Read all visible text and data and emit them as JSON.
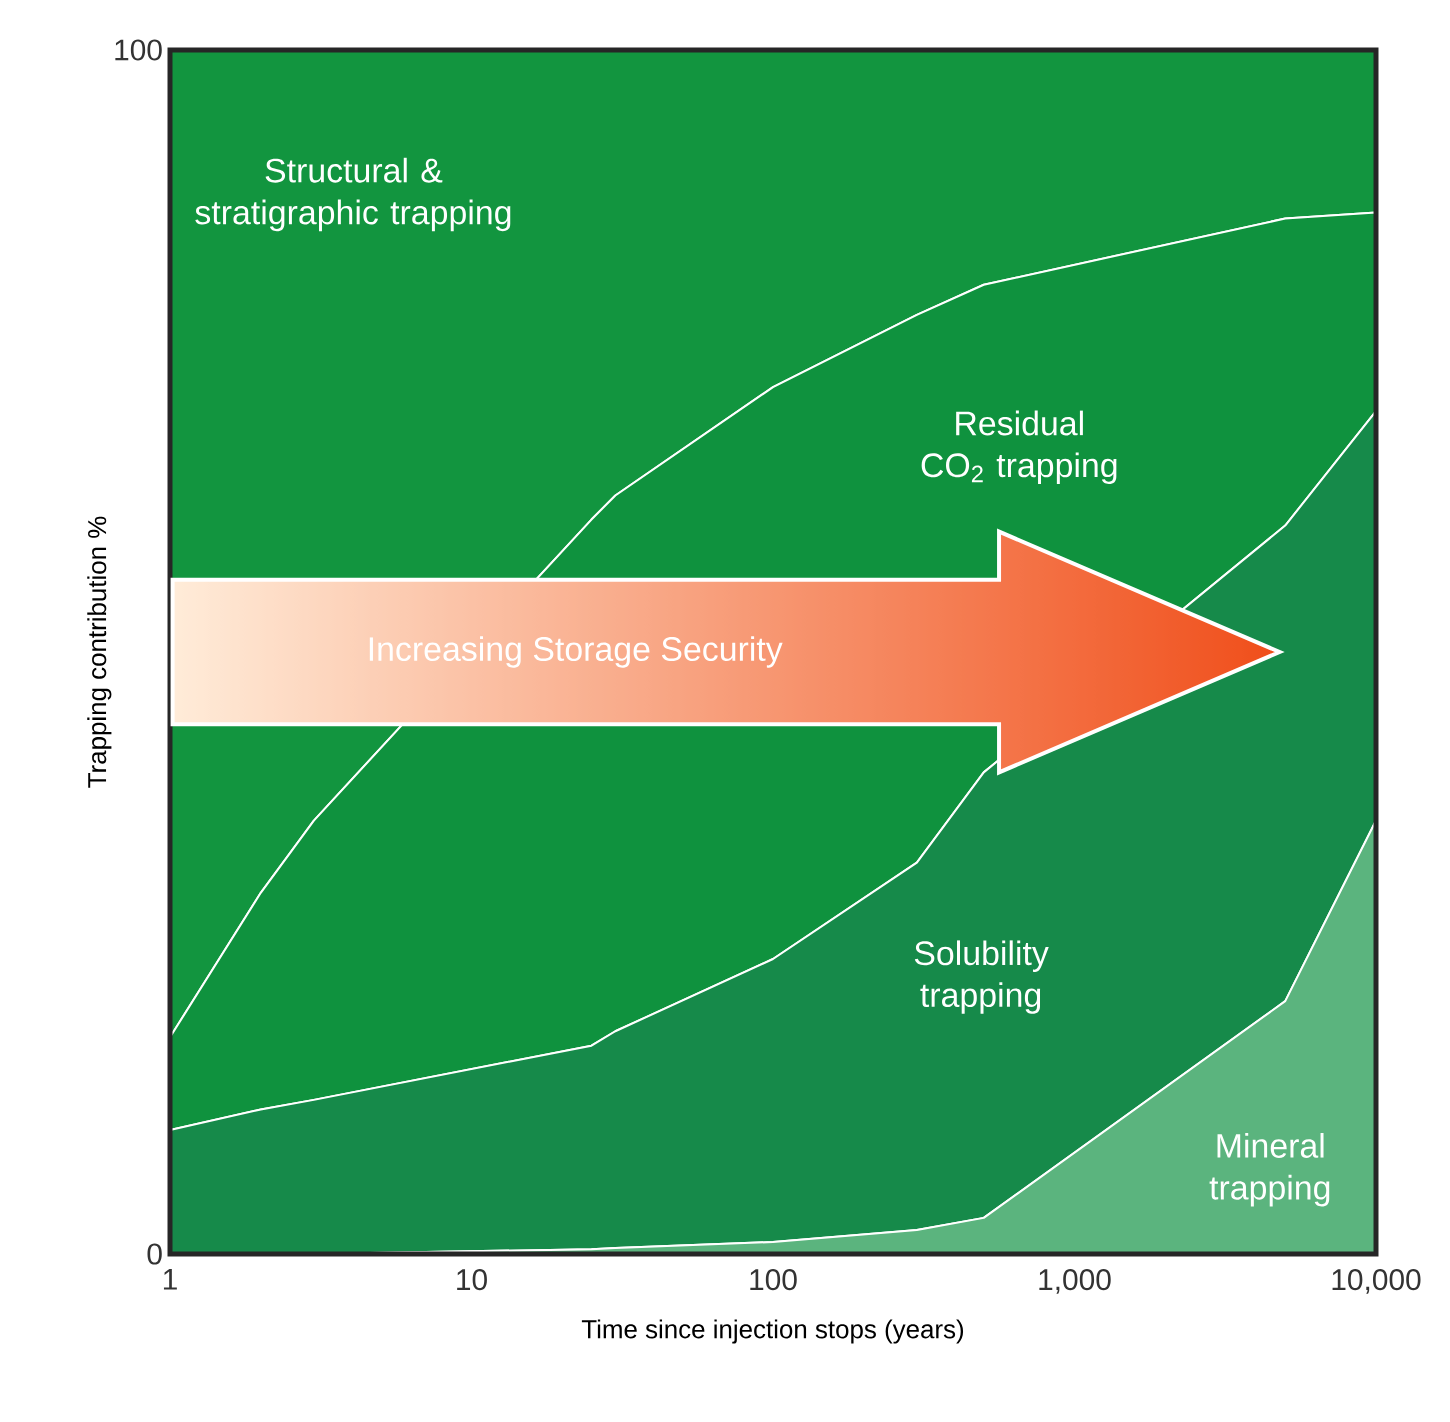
{
  "chart_data": {
    "type": "area",
    "stacked": true,
    "log": "x",
    "xlabel": "Time since injection stops (years)",
    "ylabel": "Trapping contribution %",
    "x": [
      1,
      2,
      3,
      25,
      30,
      100,
      300,
      500,
      5000,
      10000
    ],
    "series": [
      {
        "name": "Mineral trapping",
        "color": "#5bb47e",
        "values": [
          0,
          0,
          0,
          0.4,
          0.5,
          1,
          2,
          3,
          21,
          36
        ]
      },
      {
        "name": "Solubility trapping",
        "color": "#168a4a",
        "values": [
          10.3,
          12,
          12.8,
          16.9,
          18,
          23.5,
          30.5,
          37,
          39.5,
          34
        ]
      },
      {
        "name": "Residual CO$_{2}$ trapping",
        "color": "#0f923e",
        "values": [
          7.7,
          18,
          23.2,
          43.7,
          44.5,
          47.5,
          45.5,
          40.5,
          25.5,
          16.5
        ]
      },
      {
        "name": "Structural & stratigraphic trapping",
        "color": "#12953f",
        "values": [
          82,
          70,
          64,
          39,
          37,
          28,
          22,
          19.5,
          14,
          13.5
        ]
      }
    ],
    "xlim": [
      1,
      10000
    ],
    "ylim": [
      0,
      100
    ],
    "xticks": [
      1,
      10,
      100,
      {
        "value": 1000,
        "label": "1,000"
      },
      {
        "value": 10000,
        "label": "10,000"
      }
    ],
    "yticks": [
      0,
      100
    ],
    "annotations": [
      "Increasing Storage Security"
    ]
  }
}
